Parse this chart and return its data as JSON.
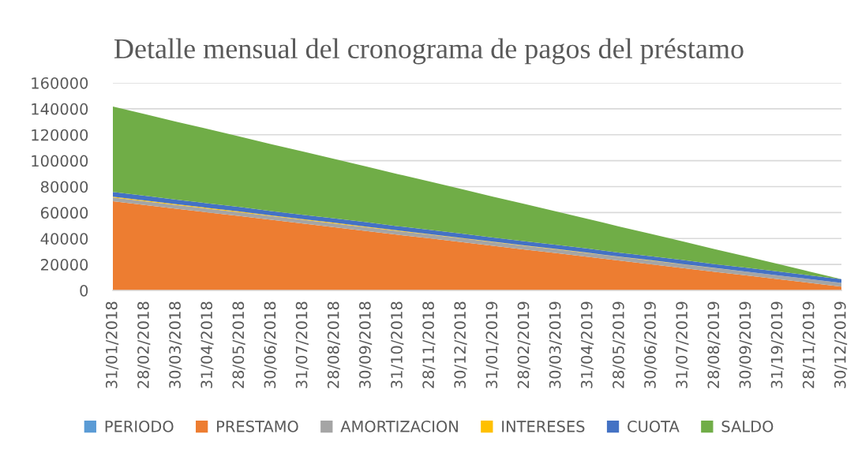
{
  "chart_data": {
    "type": "area",
    "stacked": true,
    "title": "Detalle mensual del cronograma de pagos del préstamo",
    "categories": [
      "31/01/2018",
      "28/02/2018",
      "30/03/2018",
      "31/04/2018",
      "28/05/2018",
      "30/06/2018",
      "31/07/2018",
      "28/08/2018",
      "30/09/2018",
      "31/10/2018",
      "28/11/2018",
      "30/12/2018",
      "31/01/2019",
      "28/02/2019",
      "30/03/2019",
      "31/04/2019",
      "28/05/2019",
      "30/06/2019",
      "31/07/2019",
      "28/08/2019",
      "30/09/2019",
      "31/19/2019",
      "28/11/2019",
      "30/12/2019"
    ],
    "series": [
      {
        "name": "PERIODO",
        "color": "#5b9bd5",
        "values": [
          null,
          null,
          null,
          null,
          null,
          null,
          null,
          null,
          null,
          null,
          null,
          null,
          null,
          null,
          null,
          null,
          null,
          null,
          null,
          null,
          null,
          null,
          null,
          null
        ]
      },
      {
        "name": "PRESTAMO",
        "color": "#ed7d31",
        "values": [
          68700,
          65800,
          63000,
          60100,
          57300,
          54400,
          51500,
          48700,
          45800,
          42900,
          40100,
          37200,
          34400,
          31500,
          28700,
          25800,
          22900,
          20100,
          17200,
          14300,
          11500,
          8600,
          5800,
          2900
        ]
      },
      {
        "name": "AMORTIZACION",
        "color": "#a5a5a5",
        "values": [
          2900,
          2900,
          2900,
          2900,
          2900,
          2900,
          2900,
          2900,
          2900,
          2900,
          2900,
          2900,
          2900,
          2900,
          2900,
          2900,
          2900,
          2900,
          2900,
          2900,
          2900,
          2900,
          2900,
          2900
        ]
      },
      {
        "name": "INTERESES",
        "color": "#ffc000",
        "values": [
          700,
          700,
          600,
          600,
          600,
          500,
          500,
          500,
          500,
          400,
          400,
          400,
          300,
          300,
          300,
          300,
          200,
          200,
          200,
          100,
          100,
          100,
          0,
          0
        ]
      },
      {
        "name": "CUOTA",
        "color": "#4472c4",
        "values": [
          3600,
          3600,
          3500,
          3500,
          3500,
          3400,
          3400,
          3400,
          3400,
          3300,
          3300,
          3300,
          3200,
          3200,
          3200,
          3200,
          3100,
          3100,
          3100,
          3000,
          3000,
          3000,
          2900,
          2900
        ]
      },
      {
        "name": "SALDO",
        "color": "#70ad47",
        "values": [
          65800,
          63000,
          60100,
          57300,
          54400,
          51500,
          48700,
          45800,
          42900,
          40100,
          37200,
          34400,
          31500,
          28700,
          25800,
          22900,
          20100,
          17200,
          14300,
          11500,
          8600,
          5800,
          2900,
          0
        ]
      }
    ],
    "ylim": [
      0,
      160000
    ],
    "yticks": [
      0,
      20000,
      40000,
      60000,
      80000,
      100000,
      120000,
      140000,
      160000
    ],
    "grid": "y",
    "legend": "bottom"
  }
}
